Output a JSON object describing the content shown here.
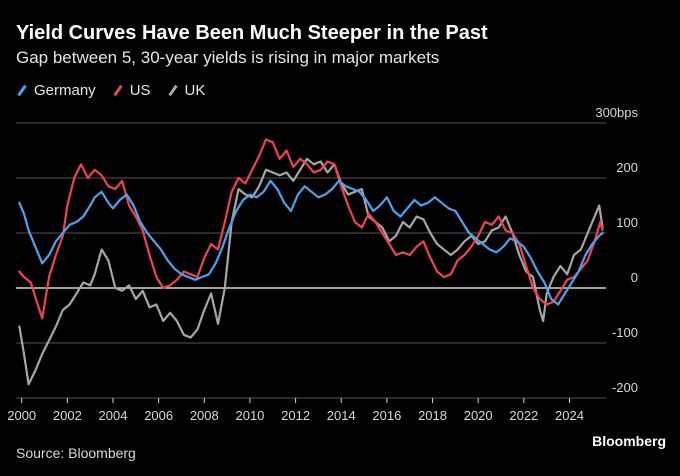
{
  "header": {
    "title": "Yield Curves Have Been Much Steeper in the Past",
    "subtitle": "Gap between 5, 30-year yields is rising in major markets"
  },
  "footer": {
    "source": "Source: Bloomberg",
    "brand": "Bloomberg"
  },
  "colors": {
    "Germany": "#4aa3ef",
    "US": "#f0434e",
    "UK": "#a6a6a6",
    "background": "#000000",
    "grid": "#555555",
    "zero": "#ffffff"
  },
  "chart_data": {
    "type": "line",
    "title": "Yield Curves Have Been Much Steeper in the Past",
    "subtitle": "Gap between 5, 30-year yields is rising in major markets",
    "xlabel": "",
    "ylabel": "bps",
    "xlim": [
      1999.75,
      2025.6
    ],
    "ylim": [
      -200,
      300
    ],
    "yticks": [
      300,
      200,
      100,
      0,
      -100,
      -200
    ],
    "ytick_labels": [
      "300bps",
      "200",
      "100",
      "0",
      "-100",
      "-200"
    ],
    "xticks": [
      2000,
      2002,
      2004,
      2006,
      2008,
      2010,
      2012,
      2014,
      2016,
      2018,
      2020,
      2022,
      2024
    ],
    "xtick_labels": [
      "2000",
      "2002",
      "2004",
      "2006",
      "2008",
      "2010",
      "2012",
      "2014",
      "2016",
      "2018",
      "2020",
      "2022",
      "2024"
    ],
    "grid": true,
    "legend": "top-left",
    "series": [
      {
        "name": "Germany",
        "color": "#4aa3ef",
        "x": [
          1999.9,
          2000.1,
          2000.3,
          2000.6,
          2000.9,
          2001.2,
          2001.5,
          2001.8,
          2002.1,
          2002.4,
          2002.7,
          2003.0,
          2003.2,
          2003.5,
          2003.8,
          2004.0,
          2004.3,
          2004.6,
          2004.9,
          2005.2,
          2005.5,
          2005.8,
          2006.1,
          2006.4,
          2006.7,
          2007.0,
          2007.3,
          2007.6,
          2007.9,
          2008.2,
          2008.5,
          2008.8,
          2009.1,
          2009.4,
          2009.7,
          2010.0,
          2010.3,
          2010.6,
          2010.9,
          2011.2,
          2011.5,
          2011.8,
          2012.1,
          2012.4,
          2012.7,
          2013.0,
          2013.3,
          2013.6,
          2013.9,
          2014.2,
          2014.5,
          2014.8,
          2015.1,
          2015.4,
          2015.7,
          2016.0,
          2016.3,
          2016.6,
          2016.9,
          2017.2,
          2017.5,
          2017.8,
          2018.1,
          2018.4,
          2018.7,
          2019.0,
          2019.3,
          2019.6,
          2019.9,
          2020.2,
          2020.5,
          2020.8,
          2021.1,
          2021.4,
          2021.7,
          2022.0,
          2022.3,
          2022.6,
          2022.9,
          2023.2,
          2023.5,
          2023.8,
          2024.1,
          2024.4,
          2024.7,
          2025.0,
          2025.3,
          2025.45
        ],
        "y": [
          155,
          135,
          105,
          75,
          45,
          60,
          85,
          100,
          115,
          120,
          130,
          150,
          165,
          175,
          155,
          145,
          160,
          170,
          150,
          120,
          100,
          85,
          70,
          50,
          35,
          25,
          20,
          15,
          20,
          25,
          45,
          75,
          110,
          140,
          160,
          170,
          165,
          175,
          195,
          180,
          155,
          140,
          170,
          185,
          175,
          165,
          170,
          180,
          195,
          185,
          180,
          175,
          160,
          140,
          150,
          165,
          140,
          130,
          145,
          160,
          150,
          155,
          165,
          155,
          145,
          140,
          120,
          100,
          90,
          80,
          70,
          65,
          75,
          90,
          85,
          75,
          55,
          30,
          10,
          -20,
          -30,
          -10,
          10,
          30,
          60,
          80,
          95,
          100
        ]
      },
      {
        "name": "US",
        "color": "#f0434e",
        "x": [
          1999.9,
          2000.1,
          2000.4,
          2000.7,
          2000.9,
          2001.2,
          2001.5,
          2001.8,
          2002.0,
          2002.3,
          2002.6,
          2002.9,
          2003.2,
          2003.5,
          2003.8,
          2004.1,
          2004.4,
          2004.7,
          2005.0,
          2005.3,
          2005.6,
          2005.9,
          2006.2,
          2006.5,
          2006.8,
          2007.1,
          2007.4,
          2007.7,
          2008.0,
          2008.3,
          2008.6,
          2008.9,
          2009.2,
          2009.5,
          2009.8,
          2010.1,
          2010.4,
          2010.7,
          2011.0,
          2011.3,
          2011.6,
          2011.9,
          2012.2,
          2012.5,
          2012.8,
          2013.1,
          2013.4,
          2013.7,
          2014.0,
          2014.3,
          2014.6,
          2014.9,
          2015.2,
          2015.5,
          2015.8,
          2016.1,
          2016.4,
          2016.7,
          2017.0,
          2017.3,
          2017.6,
          2017.9,
          2018.2,
          2018.5,
          2018.8,
          2019.1,
          2019.4,
          2019.7,
          2020.0,
          2020.3,
          2020.6,
          2020.9,
          2021.2,
          2021.5,
          2021.8,
          2022.1,
          2022.4,
          2022.7,
          2023.0,
          2023.3,
          2023.6,
          2023.9,
          2024.2,
          2024.5,
          2024.8,
          2025.1,
          2025.35,
          2025.45
        ],
        "y": [
          30,
          20,
          10,
          -30,
          -55,
          20,
          60,
          95,
          150,
          200,
          225,
          200,
          215,
          205,
          185,
          180,
          195,
          150,
          130,
          105,
          60,
          20,
          0,
          5,
          15,
          30,
          25,
          20,
          55,
          80,
          70,
          120,
          175,
          200,
          190,
          215,
          240,
          270,
          265,
          235,
          250,
          220,
          235,
          225,
          210,
          215,
          230,
          225,
          185,
          150,
          120,
          110,
          135,
          120,
          100,
          80,
          60,
          65,
          60,
          75,
          85,
          55,
          30,
          20,
          25,
          50,
          60,
          75,
          95,
          120,
          115,
          130,
          105,
          100,
          80,
          40,
          0,
          -20,
          -30,
          -25,
          -5,
          15,
          20,
          35,
          50,
          85,
          120,
          105
        ]
      },
      {
        "name": "UK",
        "color": "#a6a6a6",
        "x": [
          1999.9,
          2000.1,
          2000.3,
          2000.6,
          2000.9,
          2001.2,
          2001.5,
          2001.8,
          2002.1,
          2002.4,
          2002.7,
          2003.0,
          2003.2,
          2003.5,
          2003.8,
          2004.1,
          2004.4,
          2004.7,
          2005.0,
          2005.3,
          2005.6,
          2005.9,
          2006.2,
          2006.5,
          2006.8,
          2007.1,
          2007.4,
          2007.7,
          2008.0,
          2008.3,
          2008.6,
          2008.9,
          2009.2,
          2009.5,
          2009.8,
          2010.1,
          2010.4,
          2010.7,
          2011.0,
          2011.3,
          2011.6,
          2011.9,
          2012.2,
          2012.5,
          2012.8,
          2013.1,
          2013.4,
          2013.7,
          2014.0,
          2014.3,
          2014.6,
          2014.9,
          2015.2,
          2015.5,
          2015.8,
          2016.1,
          2016.4,
          2016.7,
          2017.0,
          2017.3,
          2017.6,
          2017.9,
          2018.2,
          2018.5,
          2018.8,
          2019.1,
          2019.4,
          2019.7,
          2020.0,
          2020.3,
          2020.6,
          2020.9,
          2021.2,
          2021.5,
          2021.8,
          2022.1,
          2022.4,
          2022.7,
          2022.85,
          2023.0,
          2023.3,
          2023.6,
          2023.9,
          2024.2,
          2024.5,
          2024.8,
          2025.1,
          2025.3,
          2025.45
        ],
        "y": [
          -70,
          -120,
          -175,
          -150,
          -120,
          -95,
          -70,
          -40,
          -30,
          -10,
          10,
          5,
          25,
          70,
          50,
          0,
          -5,
          5,
          -20,
          -5,
          -35,
          -30,
          -60,
          -45,
          -60,
          -85,
          -90,
          -75,
          -40,
          -10,
          -65,
          0,
          120,
          180,
          170,
          165,
          185,
          215,
          210,
          205,
          210,
          195,
          215,
          235,
          225,
          230,
          210,
          225,
          190,
          170,
          175,
          180,
          130,
          120,
          110,
          85,
          95,
          120,
          110,
          130,
          125,
          100,
          80,
          70,
          60,
          70,
          85,
          95,
          80,
          85,
          105,
          110,
          130,
          100,
          60,
          30,
          20,
          -40,
          -60,
          -10,
          20,
          40,
          25,
          60,
          70,
          100,
          130,
          150,
          110
        ]
      }
    ]
  }
}
